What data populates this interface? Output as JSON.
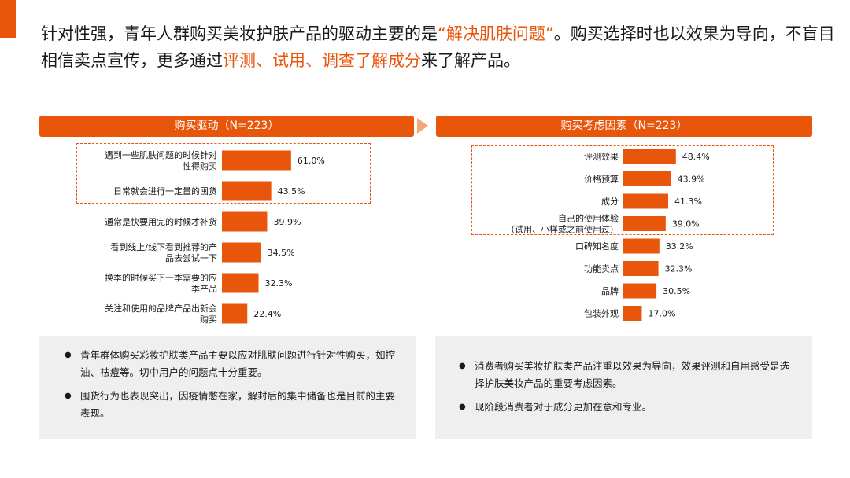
{
  "headline": {
    "part1": "针对性强，青年人群购买美妆护肤产品的驱动主要的是",
    "quote_open": "“",
    "highlight1": "解决肌肤问题",
    "quote_close": "”",
    "part2": "。购买选择时也以效果为导向，不盲目相信卖点宣传，更多通过",
    "highlight2": "评测、试用、调查了解成分",
    "part3": "来了解产品。"
  },
  "colors": {
    "accent": "#e8560c",
    "accent_light": "#f2a679",
    "note_bg": "#efefef"
  },
  "chart_data": [
    {
      "type": "bar",
      "orientation": "horizontal",
      "title": "购买驱动（N=223）",
      "categories": [
        [
          "遇到一些肌肤问题的时候针对",
          "性得购买"
        ],
        [
          "日常就会进行一定量的囤货"
        ],
        [
          "通常是快要用完的时候才补货"
        ],
        [
          "看到线上/线下看到推荐的产",
          "品去尝试一下"
        ],
        [
          "换季的时候买下一季需要的应",
          "季产品"
        ],
        [
          "关注和使用的品牌产品出新会",
          "购买"
        ]
      ],
      "values": [
        61.0,
        43.5,
        39.9,
        34.5,
        32.3,
        22.4
      ],
      "value_labels": [
        "61.0%",
        "43.5%",
        "39.9%",
        "34.5%",
        "32.3%",
        "22.4%"
      ],
      "highlighted_count": 2
    },
    {
      "type": "bar",
      "orientation": "horizontal",
      "title": "购买考虑因素（N=223）",
      "categories": [
        [
          "评测效果"
        ],
        [
          "价格预算"
        ],
        [
          "成分"
        ],
        [
          "自己的使用体验",
          "（试用、小样或之前使用过）"
        ],
        [
          "口碑知名度"
        ],
        [
          "功能卖点"
        ],
        [
          "品牌"
        ],
        [
          "包装外观"
        ]
      ],
      "values": [
        48.4,
        43.9,
        41.3,
        39.0,
        33.2,
        32.3,
        30.5,
        17.0
      ],
      "value_labels": [
        "48.4%",
        "43.9%",
        "41.3%",
        "39.0%",
        "33.2%",
        "32.3%",
        "30.5%",
        "17.0%"
      ],
      "highlighted_count": 4
    }
  ],
  "notes_left": [
    "青年群体购买彩妆护肤类产品主要以应对肌肤问题进行针对性购买，如控油、祛痘等。切中用户的问题点十分重要。",
    "囤货行为也表现突出，因疫情憋在家，解封后的集中储备也是目前的主要表现。"
  ],
  "notes_right": [
    "消费者购买美妆护肤类产品注重以效果为导向，效果评测和自用感受是选择护肤美妆产品的重要考虑因素。",
    "现阶段消费者对于成分更加在意和专业。"
  ]
}
